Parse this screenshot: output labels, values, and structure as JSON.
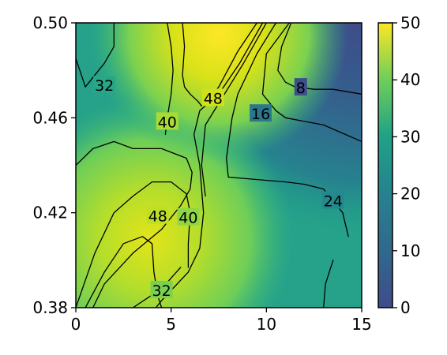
{
  "chart_data": {
    "type": "contour",
    "title": "",
    "xlabel": "",
    "ylabel": "",
    "xlim": [
      0,
      15
    ],
    "ylim": [
      0.38,
      0.5
    ],
    "x_ticks": [
      "0",
      "5",
      "10",
      "15"
    ],
    "y_ticks": [
      "0.38",
      "0.42",
      "0.46",
      "0.50"
    ],
    "colorbar": {
      "colormap": "viridis",
      "range": [
        0,
        50
      ],
      "ticks": [
        "0",
        "10",
        "20",
        "30",
        "40",
        "50"
      ],
      "colors": [
        "#3b528b",
        "#21918c",
        "#5ec962",
        "#fde725"
      ]
    },
    "levels": [
      8,
      16,
      24,
      32,
      40,
      48
    ],
    "contour_labels": [
      {
        "text": "32",
        "x": 1.5,
        "y": 0.4737
      },
      {
        "text": "40",
        "x": 4.8,
        "y": 0.4583
      },
      {
        "text": "48",
        "x": 7.2,
        "y": 0.4683
      },
      {
        "text": "8",
        "x": 11.8,
        "y": 0.4727
      },
      {
        "text": "16",
        "x": 9.7,
        "y": 0.4617
      },
      {
        "text": "48",
        "x": 4.3,
        "y": 0.4187
      },
      {
        "text": "40",
        "x": 5.9,
        "y": 0.418
      },
      {
        "text": "24",
        "x": 13.5,
        "y": 0.425
      },
      {
        "text": "32",
        "x": 4.5,
        "y": 0.3873
      }
    ],
    "contours": [
      {
        "level": 32,
        "points": [
          [
            0.9,
            0.38
          ],
          [
            1.5,
            0.39
          ],
          [
            3.0,
            0.403
          ],
          [
            4.5,
            0.413
          ],
          [
            5.5,
            0.423
          ],
          [
            6.0,
            0.43
          ],
          [
            6.1,
            0.437
          ],
          [
            5.8,
            0.443
          ],
          [
            4.5,
            0.447
          ],
          [
            3.0,
            0.447
          ],
          [
            2.0,
            0.45
          ],
          [
            0.9,
            0.447
          ],
          [
            0.0,
            0.44
          ]
        ]
      },
      {
        "level": 40,
        "points": [
          [
            0.0,
            0.38
          ],
          [
            1.0,
            0.403
          ],
          [
            2.0,
            0.42
          ],
          [
            3.0,
            0.427
          ],
          [
            4.0,
            0.433
          ],
          [
            5.0,
            0.433
          ],
          [
            5.8,
            0.428
          ],
          [
            6.0,
            0.42
          ],
          [
            5.9,
            0.407
          ],
          [
            5.9,
            0.397
          ]
        ]
      },
      {
        "level": 48,
        "points": [
          [
            0.5,
            0.38
          ],
          [
            1.5,
            0.395
          ],
          [
            2.5,
            0.407
          ],
          [
            3.5,
            0.41
          ],
          [
            4.0,
            0.407
          ],
          [
            4.1,
            0.395
          ],
          [
            4.3,
            0.385
          ],
          [
            4.5,
            0.38
          ]
        ]
      },
      {
        "level": 32,
        "points": [
          [
            2.0,
            0.5
          ],
          [
            2.0,
            0.49
          ],
          [
            1.5,
            0.483
          ],
          [
            0.5,
            0.473
          ],
          [
            0.0,
            0.485
          ]
        ]
      },
      {
        "level": 40,
        "points": [
          [
            4.8,
            0.5
          ],
          [
            5.0,
            0.49
          ],
          [
            5.1,
            0.48
          ],
          [
            5.0,
            0.47
          ],
          [
            4.8,
            0.46
          ],
          [
            4.7,
            0.453
          ]
        ]
      },
      {
        "level": 48,
        "points": [
          [
            9.5,
            0.5
          ],
          [
            8.5,
            0.488
          ],
          [
            7.5,
            0.473
          ],
          [
            6.9,
            0.467
          ],
          [
            6.6,
            0.465
          ],
          [
            6.4,
            0.467
          ],
          [
            6.0,
            0.47
          ],
          [
            5.7,
            0.473
          ],
          [
            5.6,
            0.478
          ],
          [
            5.7,
            0.49
          ],
          [
            5.6,
            0.5
          ]
        ]
      },
      {
        "level": 40,
        "points": [
          [
            9.8,
            0.5
          ],
          [
            8.6,
            0.483
          ],
          [
            7.5,
            0.47
          ],
          [
            6.5,
            0.463
          ],
          [
            6.2,
            0.453
          ],
          [
            6.5,
            0.44
          ],
          [
            6.7,
            0.42
          ],
          [
            6.5,
            0.405
          ],
          [
            5.9,
            0.395
          ],
          [
            4.5,
            0.383
          ],
          [
            4.2,
            0.38
          ]
        ]
      },
      {
        "level": 48,
        "points": [
          [
            10.0,
            0.5
          ],
          [
            8.8,
            0.483
          ],
          [
            7.8,
            0.47
          ],
          [
            6.8,
            0.457
          ],
          [
            6.6,
            0.44
          ],
          [
            6.8,
            0.427
          ]
        ]
      },
      {
        "level": 16,
        "points": [
          [
            11.2,
            0.5
          ],
          [
            10.0,
            0.487
          ],
          [
            9.8,
            0.47
          ],
          [
            10.5,
            0.463
          ],
          [
            11.0,
            0.46
          ],
          [
            13.0,
            0.457
          ],
          [
            15.0,
            0.45
          ]
        ]
      },
      {
        "level": 24,
        "points": [
          [
            10.5,
            0.5
          ],
          [
            9.5,
            0.487
          ],
          [
            8.5,
            0.47
          ],
          [
            8.2,
            0.46
          ],
          [
            7.9,
            0.443
          ],
          [
            8.0,
            0.435
          ],
          [
            11.0,
            0.433
          ],
          [
            12.0,
            0.432
          ],
          [
            13.0,
            0.43
          ],
          [
            14.0,
            0.42
          ],
          [
            14.3,
            0.41
          ]
        ]
      },
      {
        "level": 8,
        "points": [
          [
            11.3,
            0.5
          ],
          [
            10.8,
            0.49
          ],
          [
            10.6,
            0.48
          ],
          [
            11.0,
            0.475
          ],
          [
            11.5,
            0.473
          ],
          [
            12.5,
            0.472
          ],
          [
            13.5,
            0.472
          ],
          [
            15.0,
            0.47
          ]
        ]
      },
      {
        "level": 24,
        "points": [
          [
            13.0,
            0.38
          ],
          [
            13.1,
            0.39
          ],
          [
            13.5,
            0.4
          ]
        ]
      },
      {
        "level": 32,
        "points": [
          [
            3.0,
            0.38
          ],
          [
            4.5,
            0.388
          ],
          [
            5.5,
            0.397
          ]
        ]
      }
    ]
  }
}
